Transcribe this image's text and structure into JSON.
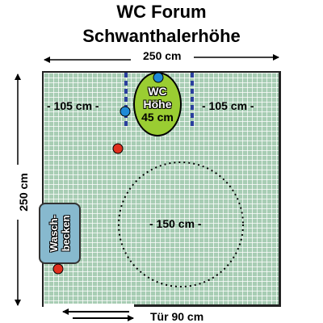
{
  "title_line1": "WC Forum",
  "title_line2": "Schwanthalerhöhe",
  "width_label": "250 cm",
  "height_label": "250 cm",
  "left_clearance": "- 105 cm -",
  "right_clearance": "- 105 cm -",
  "wc": {
    "line1": "WC",
    "line2": "Höhe",
    "line3": "45 cm",
    "color": "#9acd32"
  },
  "sink": {
    "line1": "Wasch-",
    "line2": "becken",
    "color": "#87b9ce"
  },
  "turning_circle": "- 150 cm -",
  "door_label": "Tür 90 cm",
  "floor_color": "#a8cdb4",
  "grab_bar_color": "#2a3f9d",
  "button_color": "#e0301e",
  "flush_color": "#1f8ad6"
}
